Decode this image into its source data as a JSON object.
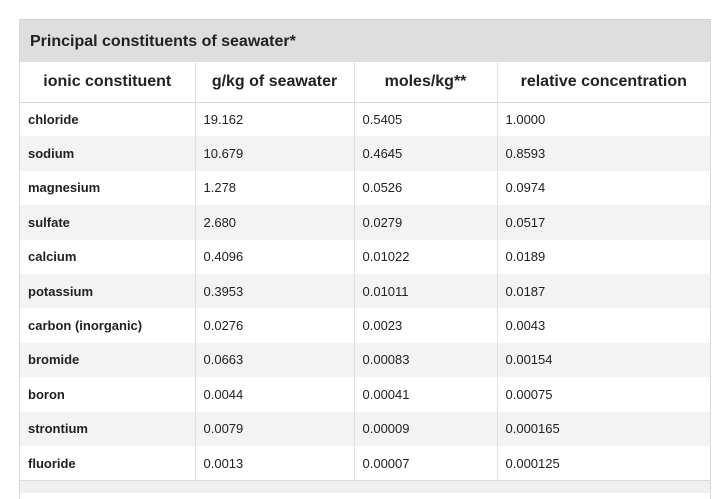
{
  "table": {
    "caption": "Principal constituents of seawater*",
    "headers": [
      "ionic constituent",
      "g/kg of seawater",
      "moles/kg**",
      "relative concentration"
    ],
    "rows": [
      [
        "chloride",
        "19.162",
        "0.5405",
        "1.0000"
      ],
      [
        "sodium",
        "10.679",
        "0.4645",
        "0.8593"
      ],
      [
        "magnesium",
        "1.278",
        "0.0526",
        "0.0974"
      ],
      [
        "sulfate",
        "2.680",
        "0.0279",
        "0.0517"
      ],
      [
        "calcium",
        "0.4096",
        "0.01022",
        "0.0189"
      ],
      [
        "potassium",
        "0.3953",
        "0.01011",
        "0.0187"
      ],
      [
        "carbon (inorganic)",
        "0.0276",
        "0.0023",
        "0.0043"
      ],
      [
        "bromide",
        "0.0663",
        "0.00083",
        "0.00154"
      ],
      [
        "boron",
        "0.0044",
        "0.00041",
        "0.00075"
      ],
      [
        "strontium",
        "0.0079",
        "0.00009",
        "0.000165"
      ],
      [
        "fluoride",
        "0.0013",
        "0.00007",
        "0.000125"
      ]
    ]
  }
}
